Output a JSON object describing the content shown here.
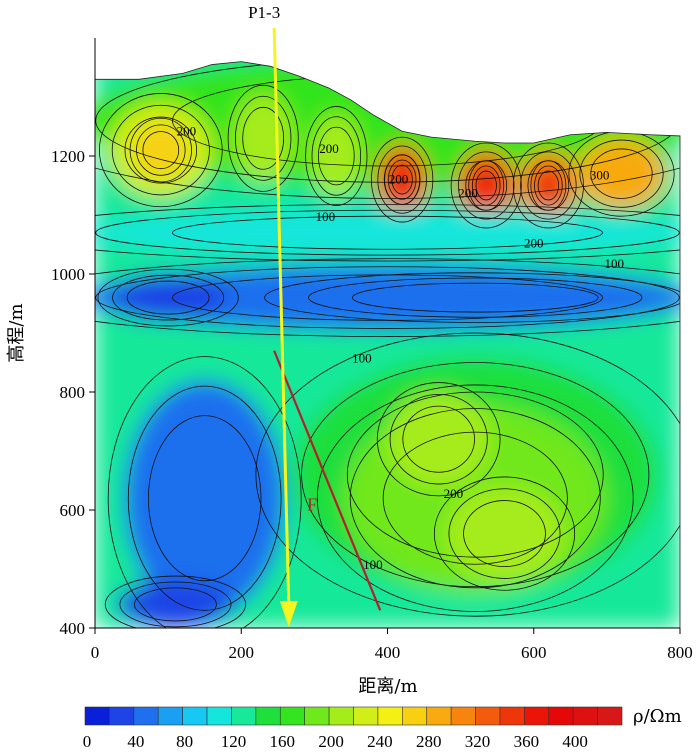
{
  "chart_data": {
    "type": "heatmap",
    "title": "",
    "xlabel": "距离/m",
    "ylabel": "高程/m",
    "xlim": [
      0,
      800
    ],
    "ylim": [
      400,
      1400
    ],
    "x_ticks": [
      "0",
      "200",
      "400",
      "600",
      "800"
    ],
    "y_ticks": [
      "400",
      "600",
      "800",
      "1000",
      "1200"
    ],
    "colorbar": {
      "label": "ρ/Ωm",
      "tick_labels": [
        "0",
        "40",
        "80",
        "120",
        "160",
        "200",
        "240",
        "280",
        "320",
        "360",
        "400"
      ],
      "range": [
        0,
        440
      ],
      "step": 20,
      "colors": [
        "#0a1fd8",
        "#1f44e6",
        "#1f6fee",
        "#1aa0f2",
        "#16c8f2",
        "#14e6dc",
        "#18e89a",
        "#1edf3c",
        "#33e41f",
        "#6fe81c",
        "#a6ec1a",
        "#d2ee18",
        "#f4f014",
        "#f8d012",
        "#f8aa10",
        "#f6840e",
        "#f25c0c",
        "#ee360a",
        "#ea1408",
        "#e40808",
        "#de1010",
        "#d81818"
      ]
    },
    "top_boundary": [
      [
        0,
        1330
      ],
      [
        60,
        1330
      ],
      [
        120,
        1340
      ],
      [
        160,
        1355
      ],
      [
        200,
        1360
      ],
      [
        240,
        1352
      ],
      [
        280,
        1335
      ],
      [
        320,
        1315
      ],
      [
        350,
        1295
      ],
      [
        380,
        1270
      ],
      [
        420,
        1242
      ],
      [
        460,
        1232
      ],
      [
        520,
        1225
      ],
      [
        560,
        1222
      ],
      [
        600,
        1222
      ],
      [
        650,
        1236
      ],
      [
        700,
        1240
      ],
      [
        760,
        1236
      ],
      [
        800,
        1234
      ]
    ],
    "profile_line": {
      "label": "P1-3",
      "start": [
        245,
        1395
      ],
      "end": [
        265,
        405
      ]
    },
    "fault": {
      "label": "F",
      "start": [
        245,
        870
      ],
      "end": [
        390,
        430
      ]
    },
    "contour_labels": [
      {
        "text": "200",
        "x": 125,
        "y": 1235
      },
      {
        "text": "200",
        "x": 320,
        "y": 1205
      },
      {
        "text": "100",
        "x": 315,
        "y": 1090
      },
      {
        "text": "200",
        "x": 415,
        "y": 1153
      },
      {
        "text": "200",
        "x": 510,
        "y": 1130
      },
      {
        "text": "300",
        "x": 690,
        "y": 1160
      },
      {
        "text": "200",
        "x": 600,
        "y": 1045
      },
      {
        "text": "100",
        "x": 710,
        "y": 1010
      },
      {
        "text": "100",
        "x": 365,
        "y": 850
      },
      {
        "text": "200",
        "x": 490,
        "y": 620
      },
      {
        "text": "100",
        "x": 380,
        "y": 500
      }
    ]
  }
}
